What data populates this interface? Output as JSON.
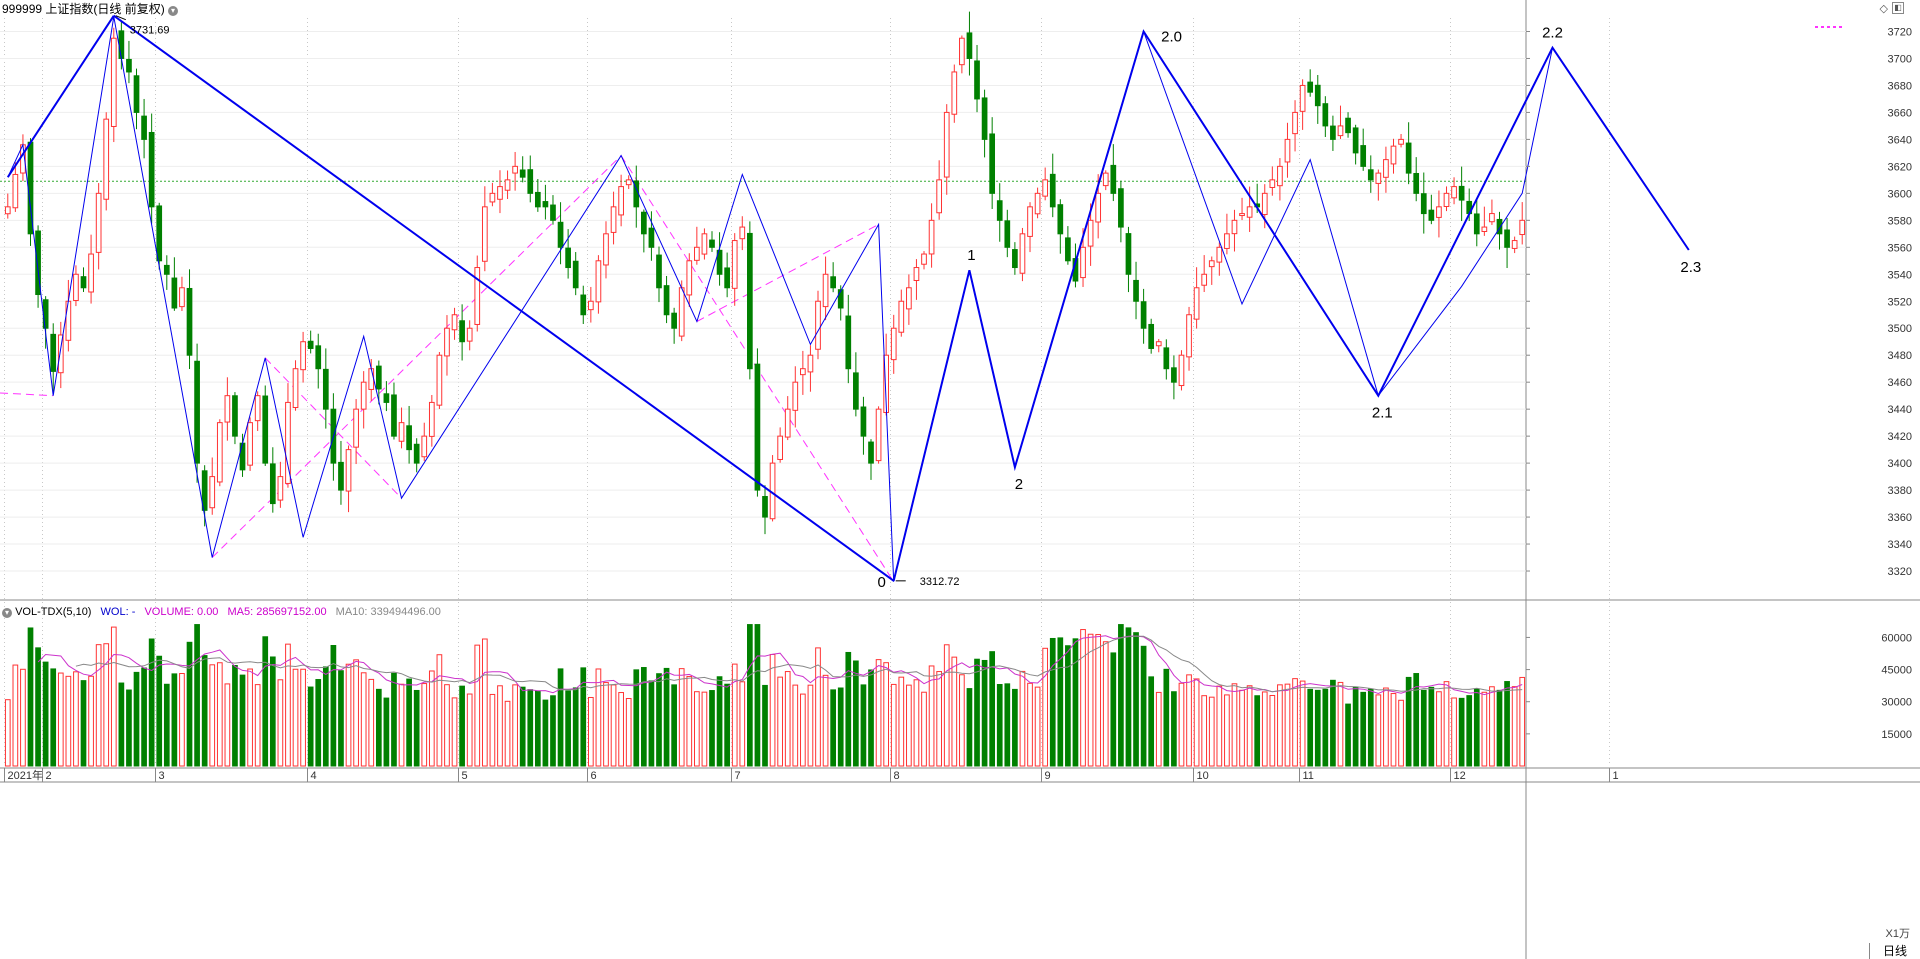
{
  "header": {
    "title": "999999 上证指数(日线 前复权)",
    "vol_indicator": "VOL-TDX(5,10)",
    "vol_wol": "WOL: -",
    "vol_volume": "VOLUME: 0.00",
    "vol_ma5": "MA5: 285697152.00",
    "vol_ma10": "MA10: 339494496.00",
    "unit_label": "X1万",
    "period_label": "日线"
  },
  "colors": {
    "up": "#ff3333",
    "down": "#008000",
    "zigzag": "#0000ee",
    "dashed": "#ff33ff",
    "ma5": "#cc33cc",
    "ma10": "#888888",
    "ref_line": "#33aa33",
    "grid": "#c8c8c8"
  },
  "chart_data": [
    {
      "type": "candlestick",
      "title": "999999 上证指数(日线 前复权)",
      "ylim": [
        3300,
        3730
      ],
      "y_ticks": [
        3320,
        3340,
        3360,
        3380,
        3400,
        3420,
        3440,
        3460,
        3480,
        3500,
        3520,
        3540,
        3560,
        3580,
        3600,
        3620,
        3640,
        3660,
        3680,
        3700,
        3720
      ],
      "x_month_labels": [
        "2021年",
        "2",
        "3",
        "4",
        "5",
        "6",
        "7",
        "8",
        "9",
        "10",
        "11",
        "12",
        "1"
      ],
      "month_start_index": [
        0,
        5,
        20,
        40,
        60,
        77,
        96,
        117,
        137,
        157,
        171,
        191,
        212
      ],
      "reference_line": 3609,
      "close": [
        3590,
        3614,
        3636,
        3570,
        3525,
        3500,
        3468,
        3495,
        3520,
        3540,
        3530,
        3555,
        3600,
        3655,
        3715,
        3700,
        3690,
        3660,
        3640,
        3590,
        3550,
        3540,
        3515,
        3530,
        3480,
        3400,
        3365,
        3390,
        3430,
        3450,
        3420,
        3395,
        3430,
        3450,
        3400,
        3370,
        3390,
        3445,
        3470,
        3490,
        3485,
        3470,
        3440,
        3400,
        3380,
        3410,
        3440,
        3460,
        3470,
        3455,
        3445,
        3420,
        3430,
        3410,
        3400,
        3420,
        3445,
        3480,
        3500,
        3510,
        3490,
        3500,
        3545,
        3590,
        3600,
        3605,
        3610,
        3620,
        3612,
        3600,
        3590,
        3590,
        3580,
        3560,
        3545,
        3530,
        3510,
        3520,
        3550,
        3570,
        3590,
        3605,
        3610,
        3590,
        3570,
        3560,
        3530,
        3510,
        3500,
        3530,
        3550,
        3560,
        3570,
        3560,
        3540,
        3530,
        3565,
        3575,
        3470,
        3380,
        3360,
        3400,
        3420,
        3440,
        3460,
        3470,
        3480,
        3520,
        3540,
        3530,
        3515,
        3470,
        3440,
        3420,
        3400,
        3440,
        3480,
        3500,
        3520,
        3530,
        3545,
        3555,
        3580,
        3610,
        3660,
        3690,
        3715,
        3700,
        3670,
        3640,
        3600,
        3580,
        3560,
        3545,
        3570,
        3590,
        3600,
        3610,
        3590,
        3570,
        3550,
        3535,
        3560,
        3580,
        3600,
        3615,
        3600,
        3575,
        3540,
        3520,
        3500,
        3485,
        3490,
        3470,
        3460,
        3480,
        3510,
        3530,
        3540,
        3550,
        3560,
        3570,
        3580,
        3585,
        3590,
        3590,
        3600,
        3610,
        3620,
        3640,
        3660,
        3680,
        3675,
        3665,
        3650,
        3640,
        3650,
        3645,
        3630,
        3620,
        3610,
        3615,
        3625,
        3635,
        3640,
        3615,
        3600,
        3585,
        3580,
        3590,
        3600,
        3605,
        3595,
        3585,
        3570,
        3575,
        3585,
        3570,
        3560,
        3565,
        3580
      ],
      "swing_points": [
        {
          "label": "3731.69",
          "value": 3731.69
        },
        {
          "label": "3312.72",
          "value": 3312.72
        },
        {
          "label": "0",
          "value": 3312.72
        },
        {
          "label": "1",
          "value": 3543
        },
        {
          "label": "2",
          "value": 3397
        },
        {
          "label": "2.0",
          "value": 3720
        },
        {
          "label": "2.1",
          "value": 3450
        },
        {
          "label": "2.2",
          "value": 3708
        },
        {
          "label": "2.3",
          "value": 3558
        }
      ]
    },
    {
      "type": "bar",
      "title": "VOL-TDX(5,10)",
      "ylim": [
        0,
        70000
      ],
      "y_ticks": [
        15000,
        30000,
        45000,
        60000
      ],
      "unit": "X1万",
      "series": [
        {
          "name": "MA5",
          "value": 285697152.0
        },
        {
          "name": "MA10",
          "value": 339494496.0
        }
      ]
    }
  ]
}
